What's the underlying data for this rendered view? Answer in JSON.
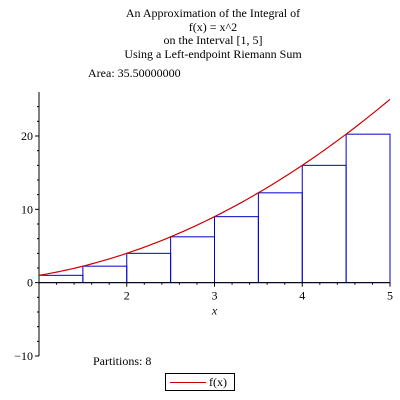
{
  "title_lines": [
    "An Approximation of the Integral of",
    "f(x) = x^2",
    "on the Interval [1, 5]",
    "Using a Left-endpoint Riemann Sum"
  ],
  "area_label": "Area: 35.50000000",
  "partitions_label": "Partitions: 8",
  "chart_data": {
    "type": "bar",
    "function_label": "f(x) = x^2",
    "interval": [
      1,
      5
    ],
    "method": "Left-endpoint Riemann Sum",
    "area": 35.5,
    "partitions": 8,
    "xlabel": "x",
    "ylabel": "",
    "xlim": [
      1,
      5
    ],
    "ylim": [
      -10,
      26
    ],
    "xticks": [
      2,
      3,
      4,
      5
    ],
    "yticks": [
      -10,
      0,
      10,
      20
    ],
    "rectangles": [
      {
        "x0": 1.0,
        "x1": 1.5,
        "height": 1.0
      },
      {
        "x0": 1.5,
        "x1": 2.0,
        "height": 2.25
      },
      {
        "x0": 2.0,
        "x1": 2.5,
        "height": 4.0
      },
      {
        "x0": 2.5,
        "x1": 3.0,
        "height": 6.25
      },
      {
        "x0": 3.0,
        "x1": 3.5,
        "height": 9.0
      },
      {
        "x0": 3.5,
        "x1": 4.0,
        "height": 12.25
      },
      {
        "x0": 4.0,
        "x1": 4.5,
        "height": 16.0
      },
      {
        "x0": 4.5,
        "x1": 5.0,
        "height": 20.25
      }
    ],
    "curve": {
      "name": "f(x)",
      "exponent": 2
    },
    "legend": {
      "entries": [
        "f(x)"
      ],
      "position": "bottom"
    },
    "grid": false,
    "colors": {
      "curve": "#cc0000",
      "rectangles": "#0000cc",
      "axes": "#000000"
    }
  }
}
